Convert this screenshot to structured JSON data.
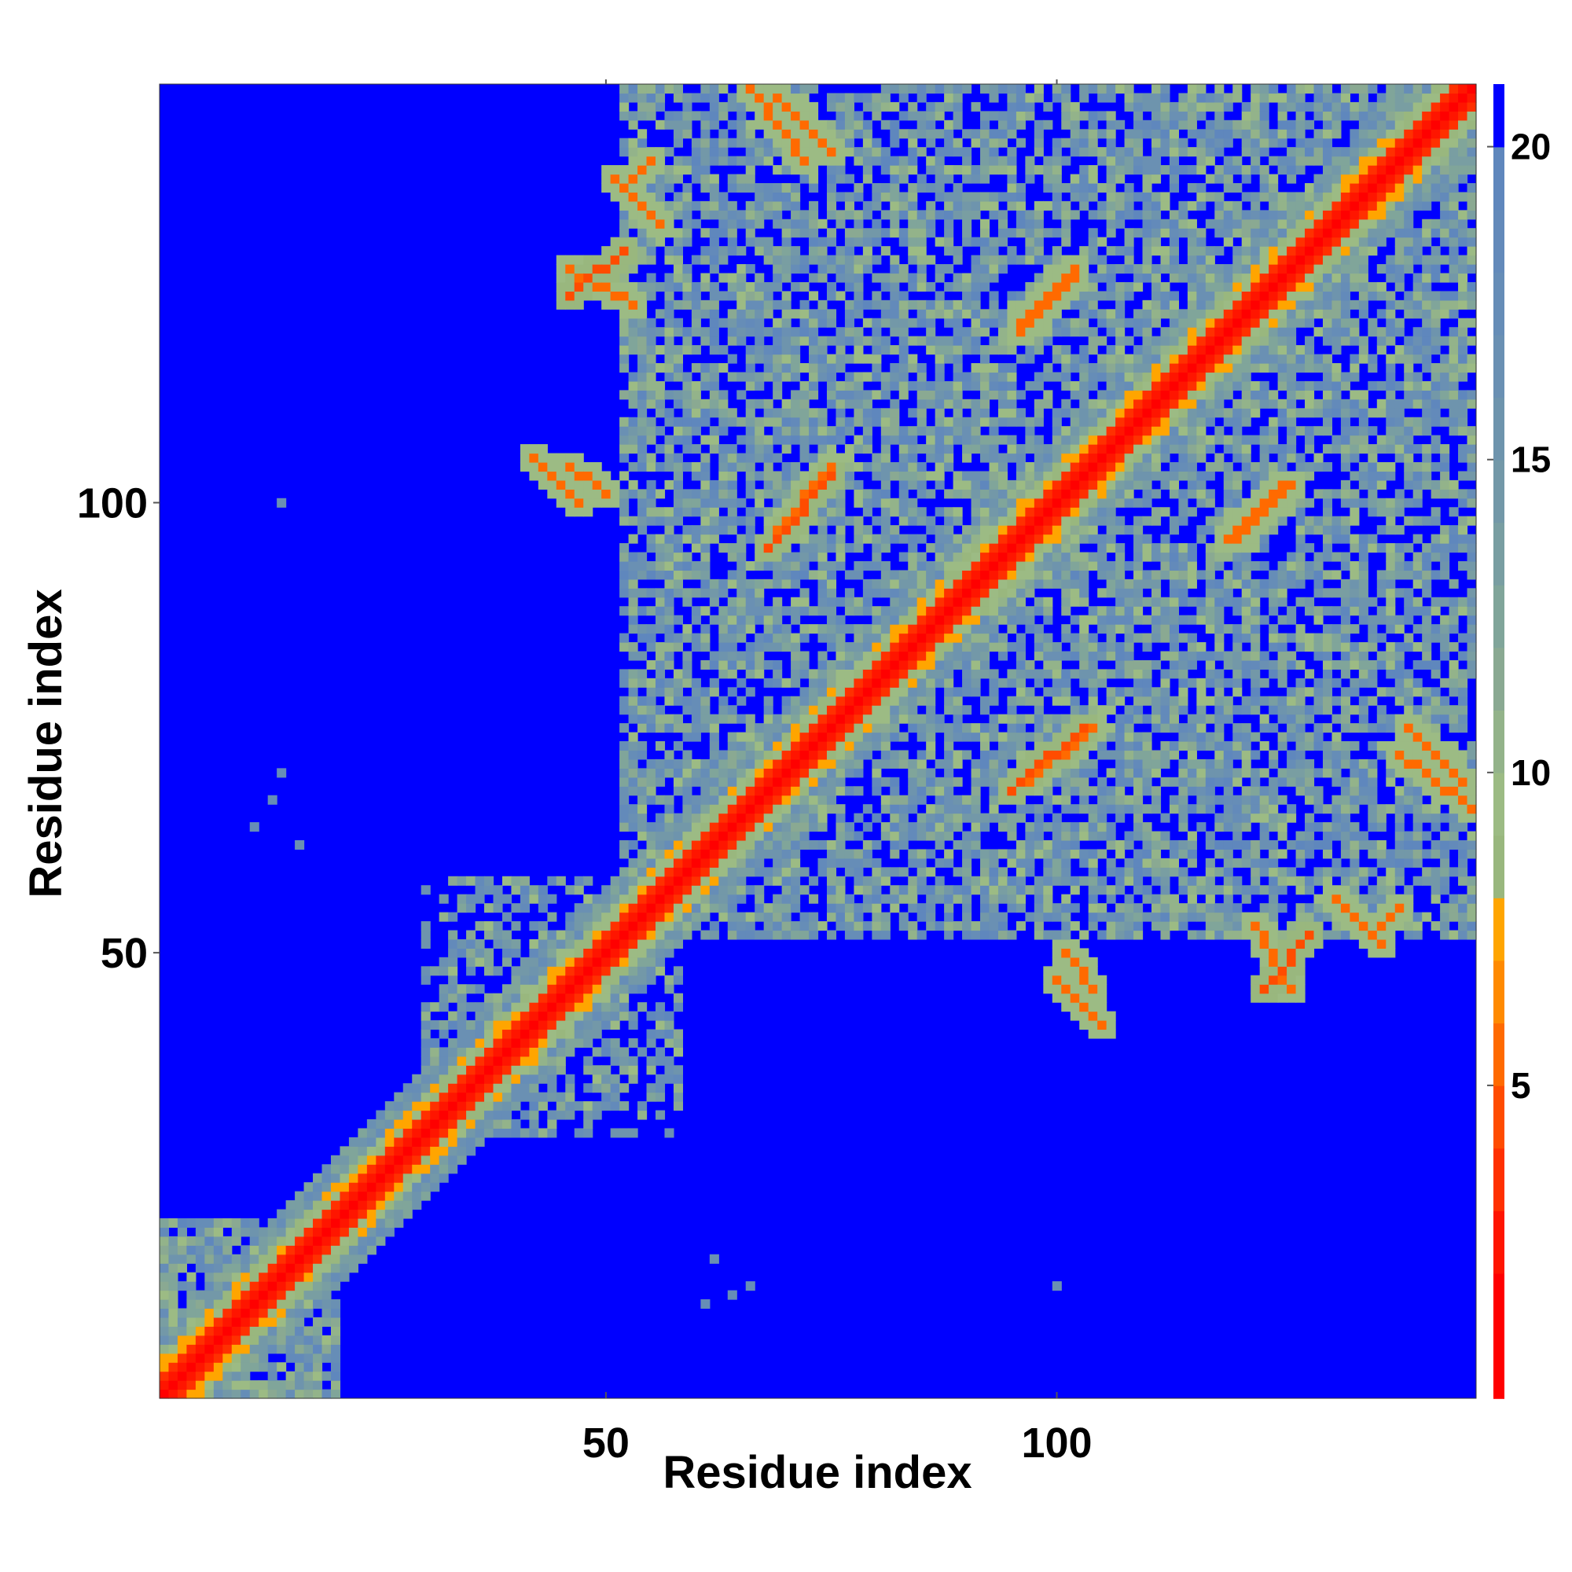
{
  "chart_data": {
    "type": "heatmap",
    "title": "",
    "xlabel": "Residue index",
    "ylabel": "Residue index",
    "n_residues": 146,
    "xlim": [
      1,
      146
    ],
    "ylim": [
      1,
      146
    ],
    "x_ticks": [
      50,
      100
    ],
    "y_ticks": [
      50,
      100
    ],
    "x_tick_labels": [
      "50",
      "100"
    ],
    "y_tick_labels": [
      "50",
      "100"
    ],
    "colorbar": {
      "range": [
        0,
        21
      ],
      "ticks": [
        5,
        10,
        15,
        20
      ],
      "tick_labels": [
        "5",
        "10",
        "15",
        "20"
      ],
      "colors": [
        {
          "upto": 2,
          "color": "#ff0000"
        },
        {
          "upto": 3,
          "color": "#ff1500"
        },
        {
          "upto": 4,
          "color": "#ff3000"
        },
        {
          "upto": 5,
          "color": "#ff4c00"
        },
        {
          "upto": 6,
          "color": "#ff6a00"
        },
        {
          "upto": 7,
          "color": "#ff8a00"
        },
        {
          "upto": 8,
          "color": "#ffa500"
        },
        {
          "upto": 9,
          "color": "#99b77e"
        },
        {
          "upto": 10,
          "color": "#9cbb84"
        },
        {
          "upto": 11,
          "color": "#93b38a"
        },
        {
          "upto": 12,
          "color": "#8aa992"
        },
        {
          "upto": 13,
          "color": "#80a59a"
        },
        {
          "upto": 14,
          "color": "#799ea2"
        },
        {
          "upto": 15,
          "color": "#7398a8"
        },
        {
          "upto": 16,
          "color": "#6e94ad"
        },
        {
          "upto": 17,
          "color": "#6a90b3"
        },
        {
          "upto": 18,
          "color": "#668db7"
        },
        {
          "upto": 19,
          "color": "#638aba"
        },
        {
          "upto": 20,
          "color": "#5f87bd"
        },
        {
          "upto": 21,
          "color": "#0000ff"
        }
      ]
    },
    "diagonal_value": 1,
    "background_value": 21,
    "domains": [
      {
        "range": [
          1,
          20
        ],
        "intensity": 0.85
      },
      {
        "range": [
          30,
          58
        ],
        "intensity": 0.55
      },
      {
        "range": [
          52,
          146
        ],
        "intensity": 0.7
      }
    ],
    "contact_bands": [
      {
        "x_from": 66,
        "x_to": 72,
        "y_from": 146,
        "y_to": 138,
        "value": 6
      },
      {
        "x_from": 51,
        "x_to": 56,
        "y_from": 136,
        "y_to": 131,
        "value": 6
      },
      {
        "x_from": 46,
        "x_to": 53,
        "y_from": 126,
        "y_to": 122,
        "value": 6
      },
      {
        "x_from": 46,
        "x_to": 50,
        "y_from": 104,
        "y_to": 101,
        "value": 6
      },
      {
        "x_from": 68,
        "x_to": 75,
        "y_from": 95,
        "y_to": 103,
        "value": 5
      },
      {
        "x_from": 96,
        "x_to": 102,
        "y_from": 120,
        "y_to": 126,
        "value": 6
      },
      {
        "x_from": 119,
        "x_to": 125,
        "y_from": 96,
        "y_to": 102,
        "value": 6
      },
      {
        "x_from": 97,
        "x_to": 104,
        "y_from": 69,
        "y_to": 75,
        "value": 6
      },
      {
        "x_from": 139,
        "x_to": 145,
        "y_from": 75,
        "y_to": 69,
        "value": 6
      },
      {
        "x_from": 100,
        "x_to": 105,
        "y_from": 47,
        "y_to": 42,
        "value": 6
      },
      {
        "x_from": 123,
        "x_to": 128,
        "y_from": 46,
        "y_to": 52,
        "value": 5
      },
      {
        "x_from": 135,
        "x_to": 138,
        "y_from": 52,
        "y_to": 55,
        "value": 6
      },
      {
        "x_from": 82,
        "x_to": 88,
        "y_from": 82,
        "y_to": 88,
        "value": 7
      }
    ],
    "isolated_points": [
      {
        "x": 14,
        "y": 100,
        "value": 17
      },
      {
        "x": 14,
        "y": 70,
        "value": 18
      },
      {
        "x": 13,
        "y": 67,
        "value": 18
      },
      {
        "x": 11,
        "y": 64,
        "value": 18
      },
      {
        "x": 16,
        "y": 62,
        "value": 17
      },
      {
        "x": 62,
        "y": 16,
        "value": 17
      },
      {
        "x": 66,
        "y": 13,
        "value": 18
      },
      {
        "x": 64,
        "y": 12,
        "value": 18
      },
      {
        "x": 61,
        "y": 11,
        "value": 18
      },
      {
        "x": 100,
        "y": 13,
        "value": 17
      }
    ]
  }
}
